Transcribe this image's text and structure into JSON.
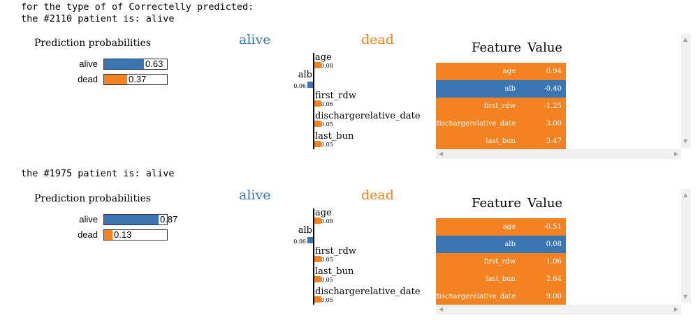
{
  "header": {
    "line1": "for the type of of Correctelly predicted:",
    "line2": "the #2110 patient is: alive"
  },
  "colors": {
    "alive": "#3a76b4",
    "dead": "#f58220"
  },
  "patients": [
    {
      "heading": "the #2110 patient is: alive",
      "proba_title": "Prediction probabilities",
      "probabilities": [
        {
          "label": "alive",
          "value": 0.63,
          "value_text": "0.63"
        },
        {
          "label": "dead",
          "value": 0.37,
          "value_text": "0.37"
        }
      ],
      "class_left": "alive",
      "class_right": "dead",
      "contributions": [
        {
          "feature": "age",
          "weight": "0.08",
          "side": "dead"
        },
        {
          "feature": "alb",
          "weight": "0.06",
          "side": "alive"
        },
        {
          "feature": "first_rdw",
          "weight": "0.06",
          "side": "dead"
        },
        {
          "feature": "dischargerelative_date",
          "weight": "0.05",
          "side": "dead"
        },
        {
          "feature": "last_bun",
          "weight": "0.05",
          "side": "dead"
        }
      ],
      "table": {
        "feature_header": "Feature",
        "value_header": "Value",
        "rows": [
          {
            "feature": "age",
            "value": "0.94",
            "side": "dead"
          },
          {
            "feature": "alb",
            "value": "-0.40",
            "side": "alive"
          },
          {
            "feature": "first_rdw",
            "value": "-1.25",
            "side": "dead"
          },
          {
            "feature": "dischargerelative_date",
            "value": "3.00",
            "side": "dead"
          },
          {
            "feature": "last_bun",
            "value": "3.47",
            "side": "dead"
          }
        ]
      }
    },
    {
      "heading": "the #1975 patient is: alive",
      "proba_title": "Prediction probabilities",
      "probabilities": [
        {
          "label": "alive",
          "value": 0.87,
          "value_text": "0.87"
        },
        {
          "label": "dead",
          "value": 0.13,
          "value_text": "0.13"
        }
      ],
      "class_left": "alive",
      "class_right": "dead",
      "contributions": [
        {
          "feature": "age",
          "weight": "0.08",
          "side": "dead"
        },
        {
          "feature": "alb",
          "weight": "0.06",
          "side": "alive"
        },
        {
          "feature": "first_rdw",
          "weight": "0.05",
          "side": "dead"
        },
        {
          "feature": "last_bun",
          "weight": "0.05",
          "side": "dead"
        },
        {
          "feature": "dischargerelative_date",
          "weight": "0.05",
          "side": "dead"
        }
      ],
      "table": {
        "feature_header": "Feature",
        "value_header": "Value",
        "rows": [
          {
            "feature": "age",
            "value": "-0.51",
            "side": "dead"
          },
          {
            "feature": "alb",
            "value": "0.08",
            "side": "alive"
          },
          {
            "feature": "first_rdw",
            "value": "1.06",
            "side": "dead"
          },
          {
            "feature": "last_bun",
            "value": "2.64",
            "side": "dead"
          },
          {
            "feature": "dischargerelative_date",
            "value": "9.00",
            "side": "dead"
          }
        ]
      }
    }
  ]
}
